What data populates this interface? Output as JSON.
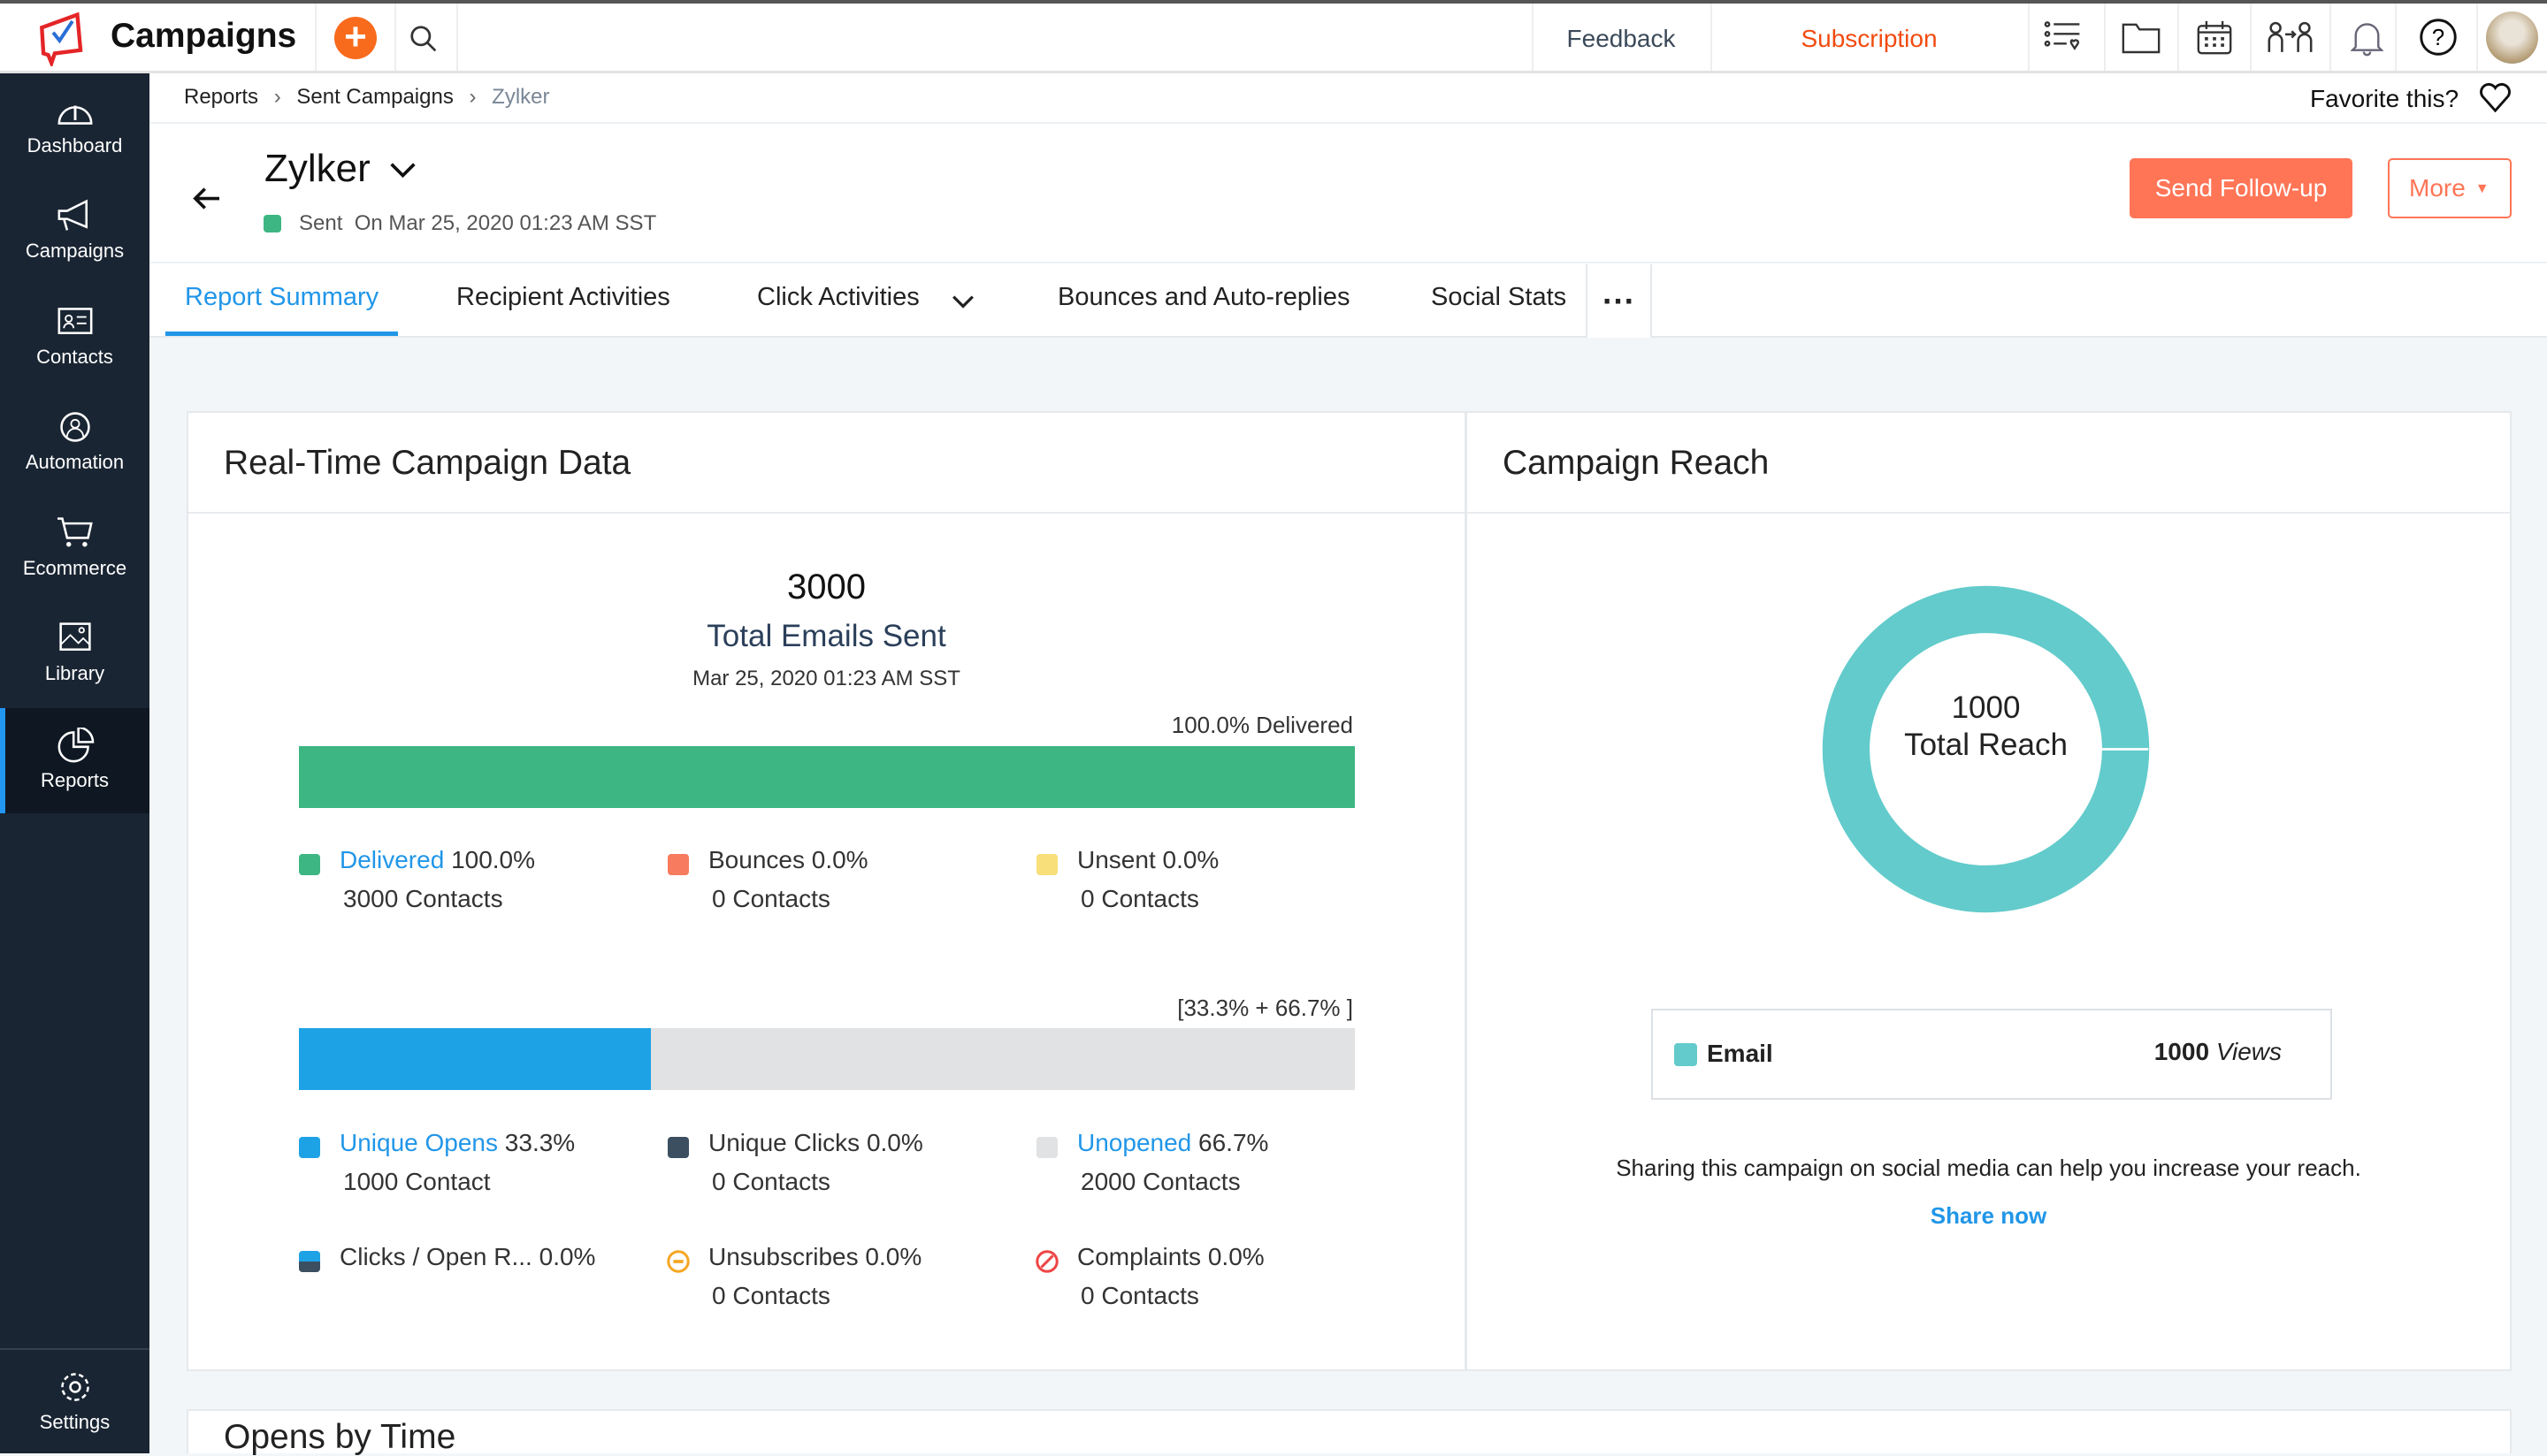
{
  "app": {
    "title": "Campaigns",
    "feedback": "Feedback",
    "subscription": "Subscription"
  },
  "sidebar": {
    "items": [
      {
        "label": "Dashboard"
      },
      {
        "label": "Campaigns"
      },
      {
        "label": "Contacts"
      },
      {
        "label": "Automation"
      },
      {
        "label": "Ecommerce"
      },
      {
        "label": "Library"
      },
      {
        "label": "Reports",
        "active": true
      },
      {
        "label": "Settings"
      }
    ]
  },
  "breadcrumb": {
    "items": [
      "Reports",
      "Sent Campaigns",
      "Zylker"
    ],
    "favorite": "Favorite this?"
  },
  "header": {
    "title": "Zylker",
    "status": "Sent  On Mar 25, 2020 01:23 AM SST",
    "status_color": "#3db683",
    "send_followup": "Send Follow-up",
    "more": "More"
  },
  "tabs": [
    {
      "label": "Report Summary",
      "active": true
    },
    {
      "label": "Recipient Activities"
    },
    {
      "label": "Click Activities"
    },
    {
      "label": "Bounces and Auto-replies"
    },
    {
      "label": "Social Stats"
    }
  ],
  "realtime": {
    "title": "Real-Time Campaign Data",
    "total": "3000",
    "total_label": "Total Emails Sent",
    "date": "Mar 25, 2020 01:23 AM SST",
    "delivery_label": "100.0% Delivered",
    "delivered_pct": 100,
    "delivery_legend": [
      {
        "label": "Delivered",
        "pct": "100.0%",
        "contacts": "3000 Contacts",
        "color": "#3db683",
        "link": true
      },
      {
        "label": "Bounces",
        "pct": "0.0%",
        "contacts": "0 Contacts",
        "color": "#f77b5e"
      },
      {
        "label": "Unsent",
        "pct": "0.0%",
        "contacts": "0 Contacts",
        "color": "#f8df7a"
      }
    ],
    "open_label": "[33.3% + 66.7% ]",
    "opened_pct": 33.3,
    "open_legend": [
      {
        "label": "Unique Opens",
        "pct": "33.3%",
        "contacts": "1000 Contact",
        "color": "#1ea2e6",
        "link": true
      },
      {
        "label": "Unique Clicks",
        "pct": "0.0%",
        "contacts": "0 Contacts",
        "color": "#3b4f61"
      },
      {
        "label": "Unopened",
        "pct": "66.7%",
        "contacts": "2000 Contacts",
        "color": "#e0e2e4",
        "link": true
      }
    ],
    "other_legend": [
      {
        "label": "Clicks / Open R...",
        "pct": "0.0%",
        "contacts": ""
      },
      {
        "label": "Unsubscribes",
        "pct": "0.0%",
        "contacts": "0 Contacts",
        "color": "#f5a623"
      },
      {
        "label": "Complaints",
        "pct": "0.0%",
        "contacts": "0 Contacts",
        "color": "#ef4444"
      }
    ]
  },
  "reach": {
    "title": "Campaign Reach",
    "value": "1000",
    "label": "Total Reach",
    "color": "#63cbcb",
    "legend_label": "Email",
    "legend_value": "1000",
    "legend_unit": "Views",
    "note": "Sharing this campaign on social media can help you increase your reach.",
    "share": "Share now"
  },
  "next_card": {
    "title": "Opens by Time"
  }
}
